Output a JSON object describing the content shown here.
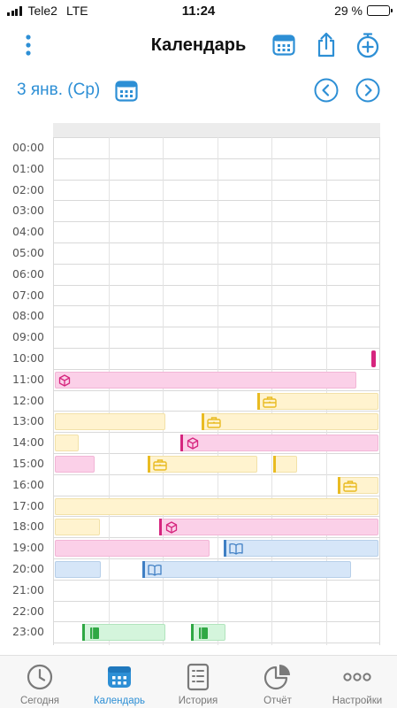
{
  "status_bar": {
    "carrier": "Tele2",
    "network": "LTE",
    "time": "11:24",
    "battery_percent": "29 %"
  },
  "header": {
    "title": "Календарь",
    "icons": [
      "more-vertical-icon",
      "calendar-grid-icon",
      "share-icon",
      "add-timer-icon"
    ]
  },
  "date_bar": {
    "date": "3 янв. (Ср)",
    "icons": [
      "calendar-picker-icon",
      "prev-day-icon",
      "next-day-icon"
    ]
  },
  "hours": [
    "00:00",
    "01:00",
    "02:00",
    "03:00",
    "04:00",
    "05:00",
    "06:00",
    "07:00",
    "08:00",
    "09:00",
    "10:00",
    "11:00",
    "12:00",
    "13:00",
    "14:00",
    "15:00",
    "16:00",
    "17:00",
    "18:00",
    "19:00",
    "20:00",
    "21:00",
    "22:00",
    "23:00"
  ],
  "activities": {
    "pink": {
      "fill": "#fbd0e8",
      "accent": "#d6257e",
      "icon": "cube-icon"
    },
    "yellow": {
      "fill": "#fff3cf",
      "accent": "#e9bb22",
      "icon": "briefcase-icon"
    },
    "blue": {
      "fill": "#d6e6f8",
      "accent": "#3f7fc4",
      "icon": "book-icon"
    },
    "green": {
      "fill": "#d4f5dc",
      "accent": "#2fa844",
      "icon": "ledger-icon"
    }
  },
  "tabs": [
    {
      "label": "Сегодня",
      "icon": "clock-icon",
      "active": false
    },
    {
      "label": "Календарь",
      "icon": "calendar-icon",
      "active": true
    },
    {
      "label": "История",
      "icon": "history-list-icon",
      "active": false
    },
    {
      "label": "Отчёт",
      "icon": "pie-chart-icon",
      "active": false
    },
    {
      "label": "Настройки",
      "icon": "more-dots-icon",
      "active": false
    }
  ]
}
